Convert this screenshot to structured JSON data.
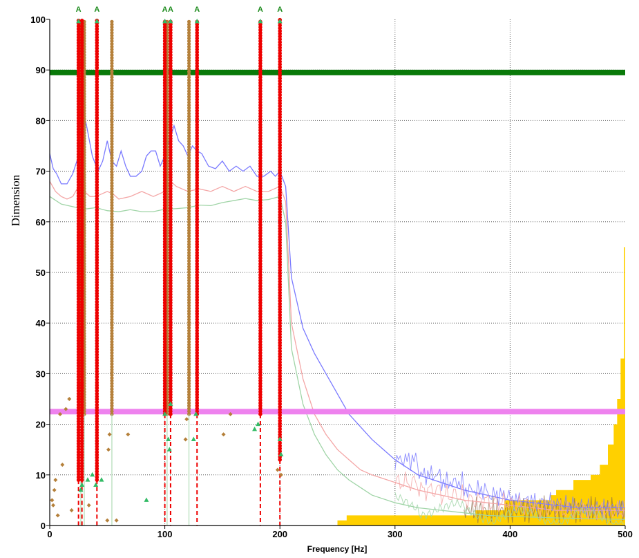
{
  "chart_data": {
    "type": "line",
    "xlabel": "Frequency [Hz]",
    "ylabel": "Dimension",
    "xlim": [
      0,
      500
    ],
    "ylim": [
      0,
      100
    ],
    "x_ticks": [
      0,
      100,
      200,
      300,
      400,
      500
    ],
    "y_ticks": [
      0,
      10,
      20,
      30,
      40,
      50,
      60,
      70,
      80,
      90,
      100
    ],
    "grid": true,
    "colors": {
      "blue": "#7a7aff",
      "pink": "#f4a6a6",
      "green_trace": "#9fd4a6",
      "threshold_green": "#0a7a0a",
      "threshold_magenta": "#ee82ee",
      "band": "#ffd000",
      "red_marker": "#ee0000",
      "brown_marker": "#b5803a",
      "triangle": "#33bb66"
    },
    "horizontal_lines": [
      {
        "y": 89.5,
        "color": "#0a7a0a"
      },
      {
        "y": 22.5,
        "color": "#ee82ee"
      }
    ],
    "annotations": [
      {
        "x": 25,
        "text": "A"
      },
      {
        "x": 41,
        "text": "A"
      },
      {
        "x": 100,
        "text": "A"
      },
      {
        "x": 105,
        "text": "A"
      },
      {
        "x": 128,
        "text": "A"
      },
      {
        "x": 183,
        "text": "A"
      },
      {
        "x": 200,
        "text": "A"
      }
    ],
    "red_columns": [
      {
        "x": 25,
        "y_bottom": 9
      },
      {
        "x": 28,
        "y_bottom": 9
      },
      {
        "x": 41,
        "y_bottom": 9
      },
      {
        "x": 100,
        "y_bottom": 22
      },
      {
        "x": 105,
        "y_bottom": 22
      },
      {
        "x": 128,
        "y_bottom": 22
      },
      {
        "x": 183,
        "y_bottom": 22
      },
      {
        "x": 200,
        "y_bottom": 13
      }
    ],
    "brown_columns": [
      {
        "x": 27,
        "y_bottom": 22
      },
      {
        "x": 30,
        "y_bottom": 22
      },
      {
        "x": 54,
        "y_bottom": 22
      },
      {
        "x": 102,
        "y_bottom": 22
      },
      {
        "x": 121,
        "y_bottom": 22
      }
    ],
    "series": [
      {
        "color": "blue",
        "points": [
          [
            0,
            73.5
          ],
          [
            3,
            70.5
          ],
          [
            6,
            69.5
          ],
          [
            10,
            67.5
          ],
          [
            15,
            67.5
          ],
          [
            20,
            69.5
          ],
          [
            25,
            73
          ],
          [
            28,
            83
          ],
          [
            32,
            79
          ],
          [
            37,
            73
          ],
          [
            42,
            70
          ],
          [
            46,
            72
          ],
          [
            50,
            76
          ],
          [
            54,
            72
          ],
          [
            58,
            71
          ],
          [
            62,
            74
          ],
          [
            66,
            71
          ],
          [
            70,
            69
          ],
          [
            75,
            69
          ],
          [
            80,
            70
          ],
          [
            84,
            73
          ],
          [
            88,
            74
          ],
          [
            92,
            74
          ],
          [
            96,
            71
          ],
          [
            100,
            73
          ],
          [
            104,
            76
          ],
          [
            108,
            79
          ],
          [
            112,
            76
          ],
          [
            116,
            75
          ],
          [
            120,
            73
          ],
          [
            124,
            75
          ],
          [
            128,
            74
          ],
          [
            132,
            73.5
          ],
          [
            138,
            71
          ],
          [
            144,
            70.5
          ],
          [
            150,
            72
          ],
          [
            156,
            70
          ],
          [
            162,
            71
          ],
          [
            168,
            70
          ],
          [
            174,
            71
          ],
          [
            180,
            69
          ],
          [
            186,
            69
          ],
          [
            192,
            70
          ],
          [
            196,
            69
          ],
          [
            200,
            70
          ],
          [
            205,
            67
          ],
          [
            210,
            49
          ],
          [
            220,
            39
          ],
          [
            230,
            34
          ],
          [
            240,
            30
          ],
          [
            250,
            26
          ],
          [
            260,
            22
          ],
          [
            270,
            19.5
          ],
          [
            280,
            17
          ],
          [
            290,
            15
          ],
          [
            300,
            13
          ],
          [
            320,
            10
          ],
          [
            340,
            8.5
          ],
          [
            360,
            7
          ],
          [
            380,
            6
          ],
          [
            400,
            5
          ],
          [
            420,
            4.5
          ],
          [
            440,
            4
          ],
          [
            460,
            3.5
          ],
          [
            480,
            3.5
          ],
          [
            500,
            3.5
          ]
        ]
      },
      {
        "color": "pink",
        "points": [
          [
            0,
            68
          ],
          [
            5,
            66
          ],
          [
            10,
            65
          ],
          [
            15,
            64.5
          ],
          [
            20,
            65
          ],
          [
            25,
            67
          ],
          [
            30,
            66
          ],
          [
            35,
            65
          ],
          [
            40,
            65
          ],
          [
            45,
            65.5
          ],
          [
            50,
            66
          ],
          [
            55,
            65.5
          ],
          [
            60,
            64.5
          ],
          [
            70,
            65
          ],
          [
            80,
            66
          ],
          [
            90,
            65
          ],
          [
            100,
            66
          ],
          [
            105,
            68
          ],
          [
            110,
            67
          ],
          [
            120,
            66
          ],
          [
            130,
            66.5
          ],
          [
            140,
            66
          ],
          [
            150,
            67
          ],
          [
            160,
            66
          ],
          [
            170,
            67
          ],
          [
            180,
            66
          ],
          [
            190,
            66
          ],
          [
            200,
            67
          ],
          [
            205,
            64
          ],
          [
            210,
            40
          ],
          [
            220,
            29
          ],
          [
            230,
            22
          ],
          [
            240,
            18
          ],
          [
            250,
            15
          ],
          [
            260,
            13
          ],
          [
            270,
            11
          ],
          [
            280,
            10
          ],
          [
            300,
            8.5
          ],
          [
            320,
            7
          ],
          [
            340,
            6
          ],
          [
            360,
            5
          ],
          [
            380,
            4.5
          ],
          [
            400,
            4
          ],
          [
            420,
            3.5
          ],
          [
            440,
            3
          ],
          [
            460,
            3
          ],
          [
            480,
            3
          ],
          [
            500,
            3
          ]
        ]
      },
      {
        "color": "green_trace",
        "points": [
          [
            0,
            65
          ],
          [
            10,
            63.5
          ],
          [
            20,
            63
          ],
          [
            30,
            62.5
          ],
          [
            40,
            62.8
          ],
          [
            50,
            62.2
          ],
          [
            60,
            62
          ],
          [
            70,
            62.4
          ],
          [
            80,
            62
          ],
          [
            90,
            62
          ],
          [
            100,
            62.5
          ],
          [
            110,
            62.6
          ],
          [
            120,
            62.8
          ],
          [
            130,
            63.3
          ],
          [
            140,
            63.2
          ],
          [
            150,
            63.8
          ],
          [
            160,
            64.2
          ],
          [
            170,
            64.6
          ],
          [
            180,
            64.2
          ],
          [
            190,
            64.4
          ],
          [
            200,
            65
          ],
          [
            205,
            60
          ],
          [
            210,
            35
          ],
          [
            220,
            24
          ],
          [
            230,
            18
          ],
          [
            240,
            14
          ],
          [
            250,
            11
          ],
          [
            260,
            9
          ],
          [
            270,
            7.5
          ],
          [
            280,
            6
          ],
          [
            300,
            4.5
          ],
          [
            320,
            3.5
          ],
          [
            340,
            3
          ],
          [
            360,
            2.5
          ],
          [
            380,
            2
          ],
          [
            400,
            1.8
          ],
          [
            440,
            1.5
          ],
          [
            500,
            1.2
          ]
        ]
      }
    ],
    "band_steps": [
      [
        250,
        1
      ],
      [
        258,
        2
      ],
      [
        300,
        2
      ],
      [
        370,
        3
      ],
      [
        395,
        5
      ],
      [
        435,
        6
      ],
      [
        440,
        7
      ],
      [
        455,
        9
      ],
      [
        470,
        10
      ],
      [
        478,
        12
      ],
      [
        485,
        16
      ],
      [
        490,
        20
      ],
      [
        493,
        25
      ],
      [
        496,
        33
      ],
      [
        499,
        55
      ],
      [
        500,
        60
      ]
    ],
    "brown_scatter": [
      [
        2,
        5
      ],
      [
        3,
        4
      ],
      [
        4,
        7
      ],
      [
        5,
        9
      ],
      [
        7,
        2
      ],
      [
        9,
        22
      ],
      [
        11,
        12
      ],
      [
        14,
        23
      ],
      [
        17,
        25
      ],
      [
        19,
        3
      ],
      [
        34,
        4
      ],
      [
        50,
        1
      ],
      [
        51,
        15
      ],
      [
        52,
        18
      ],
      [
        58,
        1
      ],
      [
        68,
        18
      ],
      [
        118,
        17
      ],
      [
        119,
        21
      ],
      [
        151,
        18
      ],
      [
        157,
        22
      ],
      [
        198,
        11
      ],
      [
        201,
        10
      ]
    ],
    "triangle_scatter": [
      [
        27,
        7
      ],
      [
        28,
        8
      ],
      [
        33,
        9
      ],
      [
        37,
        10
      ],
      [
        40,
        8
      ],
      [
        45,
        9
      ],
      [
        84,
        5
      ],
      [
        100,
        22
      ],
      [
        103,
        17
      ],
      [
        104,
        15
      ],
      [
        105,
        24
      ],
      [
        125,
        17
      ],
      [
        127,
        22
      ],
      [
        178,
        19
      ],
      [
        181,
        20
      ],
      [
        200,
        17
      ],
      [
        201,
        14
      ]
    ]
  }
}
